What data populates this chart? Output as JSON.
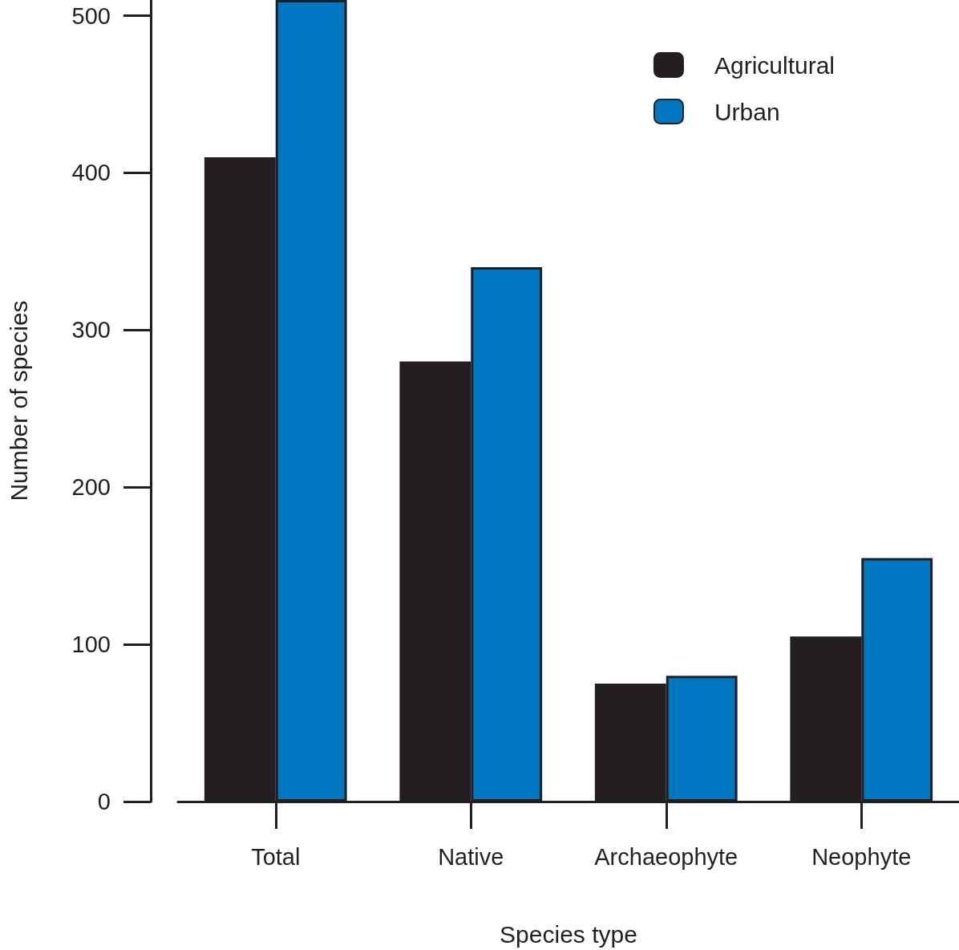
{
  "chart_data": {
    "type": "bar",
    "xlabel": "Species type",
    "ylabel": "Number of species",
    "categories": [
      "Total",
      "Native",
      "Archaeophyte",
      "Neophyte"
    ],
    "series": [
      {
        "name": "Agricultural",
        "color": "#231f20",
        "values": [
          410,
          280,
          75,
          105
        ]
      },
      {
        "name": "Urban",
        "color": "#0077c0",
        "values": [
          510,
          340,
          80,
          155
        ]
      }
    ],
    "ylim": [
      0,
      510
    ],
    "yticks": [
      0,
      100,
      200,
      300,
      400,
      500
    ],
    "grid": false,
    "legend": "top right"
  }
}
